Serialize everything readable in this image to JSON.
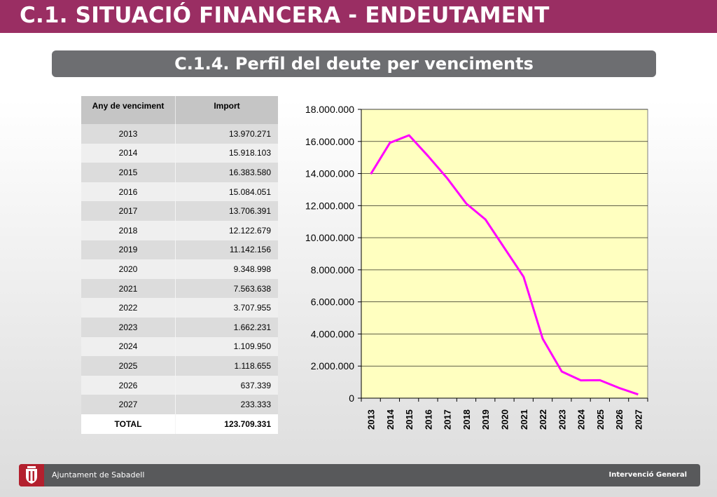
{
  "header": {
    "title": "C.1. SITUACIÓ FINANCERA - ENDEUTAMENT"
  },
  "section": {
    "title": "C.1.4. Perfil del deute per venciments"
  },
  "table": {
    "headers": [
      "Any de venciment",
      "Import"
    ],
    "rows": [
      {
        "year": "2013",
        "amount": "13.970.271"
      },
      {
        "year": "2014",
        "amount": "15.918.103"
      },
      {
        "year": "2015",
        "amount": "16.383.580"
      },
      {
        "year": "2016",
        "amount": "15.084.051"
      },
      {
        "year": "2017",
        "amount": "13.706.391"
      },
      {
        "year": "2018",
        "amount": "12.122.679"
      },
      {
        "year": "2019",
        "amount": "11.142.156"
      },
      {
        "year": "2020",
        "amount": "9.348.998"
      },
      {
        "year": "2021",
        "amount": "7.563.638"
      },
      {
        "year": "2022",
        "amount": "3.707.955"
      },
      {
        "year": "2023",
        "amount": "1.662.231"
      },
      {
        "year": "2024",
        "amount": "1.109.950"
      },
      {
        "year": "2025",
        "amount": "1.118.655"
      },
      {
        "year": "2026",
        "amount": "637.339"
      },
      {
        "year": "2027",
        "amount": "233.333"
      }
    ],
    "total_label": "TOTAL",
    "total_value": "123.709.331"
  },
  "chart_data": {
    "type": "line",
    "title": "",
    "xlabel": "",
    "ylabel": "",
    "x": [
      "2013",
      "2014",
      "2015",
      "2016",
      "2017",
      "2018",
      "2019",
      "2020",
      "2021",
      "2022",
      "2023",
      "2024",
      "2025",
      "2026",
      "2027"
    ],
    "values": [
      13970271,
      15918103,
      16383580,
      15084051,
      13706391,
      12122679,
      11142156,
      9348998,
      7563638,
      3707955,
      1662231,
      1109950,
      1118655,
      637339,
      233333
    ],
    "ylim": [
      0,
      18000000
    ],
    "yticks": [
      0,
      2000000,
      4000000,
      6000000,
      8000000,
      10000000,
      12000000,
      14000000,
      16000000,
      18000000
    ],
    "ytick_labels": [
      "0",
      "2.000.000",
      "4.000.000",
      "6.000.000",
      "8.000.000",
      "10.000.000",
      "12.000.000",
      "14.000.000",
      "16.000.000",
      "18.000.000"
    ],
    "grid": true,
    "legend": "none",
    "colors": {
      "line": "#ff00ff",
      "plot_background": "#ffffc0",
      "grid": "#000000"
    }
  },
  "footer": {
    "left_text": "Ajuntament de Sabadell",
    "right_text": "Intervenció General",
    "logo_icon": "city-coat-of-arms-icon"
  },
  "colors": {
    "header_band": "#9a2e63",
    "subtitle_bar": "#6d6e71",
    "footer_bar": "#58595b"
  }
}
